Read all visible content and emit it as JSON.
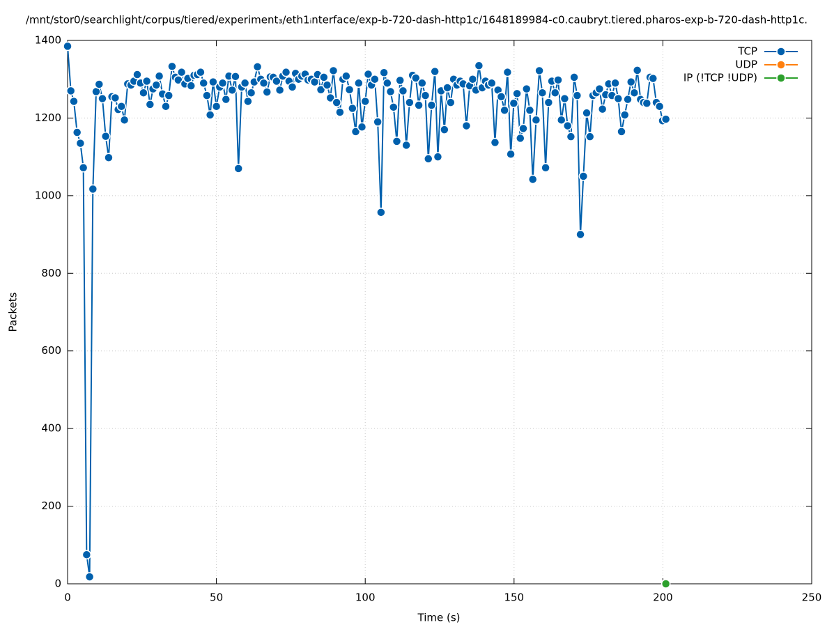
{
  "chart_data": {
    "type": "line",
    "title": "/mnt/stor0/searchlight/corpus/tiered/experiment₃/eth1ᵢnterface/exp-b-720-dash-http1c/1648189984-c0.caubryt.tiered.pharos-exp-b-720-dash-http1c.",
    "xlabel": "Time (s)",
    "ylabel": "Packets",
    "xlim": [
      0,
      250
    ],
    "xticks": [
      0,
      50,
      100,
      150,
      200,
      250
    ],
    "ylim": [
      0,
      1400
    ],
    "yticks": [
      0,
      200,
      400,
      600,
      800,
      1000,
      1200,
      1400
    ],
    "grid": true,
    "legend": "top-right",
    "series": [
      {
        "name": "TCP",
        "color": "#0060ad",
        "x": [
          0,
          1.1,
          2.1,
          3.2,
          4.3,
          5.3,
          6.4,
          7.4,
          8.5,
          9.6,
          10.6,
          11.7,
          12.8,
          13.8,
          14.9,
          16,
          17,
          18.1,
          19.1,
          20.2,
          21.3,
          22.3,
          23.4,
          24.5,
          25.5,
          26.6,
          27.7,
          28.7,
          29.8,
          30.8,
          31.9,
          33,
          34,
          35.1,
          36.2,
          37.2,
          38.3,
          39.4,
          40.4,
          41.5,
          42.5,
          43.6,
          44.7,
          45.7,
          46.8,
          47.9,
          48.9,
          50,
          51.1,
          52.1,
          53.2,
          54.2,
          55.3,
          56.4,
          57.4,
          58.5,
          59.6,
          60.6,
          61.7,
          62.7,
          63.8,
          64.9,
          65.9,
          67,
          68.1,
          69.1,
          70.2,
          71.3,
          72.3,
          73.4,
          74.4,
          75.5,
          76.6,
          77.6,
          78.7,
          79.8,
          80.8,
          81.9,
          83,
          84,
          85.1,
          86.1,
          87.2,
          88.3,
          89.3,
          90.4,
          91.5,
          92.5,
          93.6,
          94.7,
          95.7,
          96.8,
          97.8,
          98.9,
          100,
          101,
          102.1,
          103.2,
          104.2,
          105.3,
          106.3,
          107.4,
          108.5,
          109.5,
          110.6,
          111.7,
          112.7,
          113.8,
          114.9,
          115.9,
          117,
          118,
          119.1,
          120.2,
          121.2,
          122.3,
          123.4,
          124.4,
          125.5,
          126.6,
          127.6,
          128.7,
          129.7,
          130.8,
          131.9,
          132.9,
          134,
          135.1,
          136.1,
          137.2,
          138.2,
          139.3,
          140.4,
          141.4,
          142.5,
          143.6,
          144.6,
          145.7,
          146.8,
          147.8,
          148.9,
          149.9,
          151,
          152.1,
          153.1,
          154.2,
          155.3,
          156.3,
          157.4,
          158.5,
          159.5,
          160.6,
          161.6,
          162.7,
          163.8,
          164.8,
          165.9,
          167,
          168,
          169.1,
          170.2,
          171.2,
          172.3,
          173.3,
          174.4,
          175.5,
          176.5,
          177.6,
          178.7,
          179.7,
          180.8,
          181.8,
          182.9,
          184,
          185,
          186.1,
          187.2,
          188.2,
          189.3,
          190.4,
          191.4,
          192.5,
          193.5,
          194.6,
          195.7,
          196.7,
          197.8,
          198.9,
          199.9,
          201
        ],
        "values": [
          1385,
          1270,
          1243,
          1163,
          1135,
          1072,
          75,
          18,
          1017,
          1268,
          1287,
          1250,
          1153,
          1098,
          1255,
          1252,
          1222,
          1230,
          1195,
          1288,
          1285,
          1295,
          1312,
          1290,
          1265,
          1295,
          1235,
          1275,
          1285,
          1308,
          1262,
          1230,
          1258,
          1333,
          1305,
          1298,
          1318,
          1288,
          1302,
          1283,
          1310,
          1312,
          1318,
          1290,
          1258,
          1208,
          1293,
          1230,
          1280,
          1290,
          1248,
          1308,
          1272,
          1307,
          1070,
          1280,
          1290,
          1243,
          1265,
          1293,
          1332,
          1300,
          1290,
          1267,
          1306,
          1305,
          1295,
          1272,
          1308,
          1318,
          1295,
          1280,
          1315,
          1300,
          1308,
          1313,
          1298,
          1300,
          1293,
          1312,
          1273,
          1305,
          1285,
          1252,
          1322,
          1240,
          1215,
          1300,
          1308,
          1273,
          1225,
          1165,
          1290,
          1177,
          1243,
          1313,
          1285,
          1300,
          1190,
          957,
          1317,
          1290,
          1268,
          1228,
          1140,
          1297,
          1270,
          1130,
          1240,
          1310,
          1303,
          1233,
          1290,
          1258,
          1095,
          1233,
          1320,
          1100,
          1270,
          1170,
          1278,
          1240,
          1300,
          1285,
          1295,
          1288,
          1180,
          1283,
          1300,
          1272,
          1335,
          1278,
          1295,
          1285,
          1290,
          1137,
          1272,
          1255,
          1220,
          1318,
          1107,
          1238,
          1263,
          1148,
          1173,
          1275,
          1220,
          1042,
          1195,
          1322,
          1265,
          1072,
          1240,
          1295,
          1265,
          1298,
          1195,
          1250,
          1180,
          1152,
          1305,
          1258,
          900,
          1050,
          1213,
          1152,
          1258,
          1265,
          1275,
          1223,
          1260,
          1288,
          1258,
          1290,
          1250,
          1165,
          1208,
          1248,
          1293,
          1265,
          1323,
          1248,
          1240,
          1238,
          1305,
          1302,
          1240,
          1230,
          1193,
          1197
        ]
      },
      {
        "name": "UDP",
        "color": "#ff7f0e",
        "x": [],
        "values": []
      },
      {
        "name": "IP (!TCP  !UDP)",
        "color": "#2ca02c",
        "x": [
          201
        ],
        "values": [
          0
        ]
      }
    ]
  }
}
